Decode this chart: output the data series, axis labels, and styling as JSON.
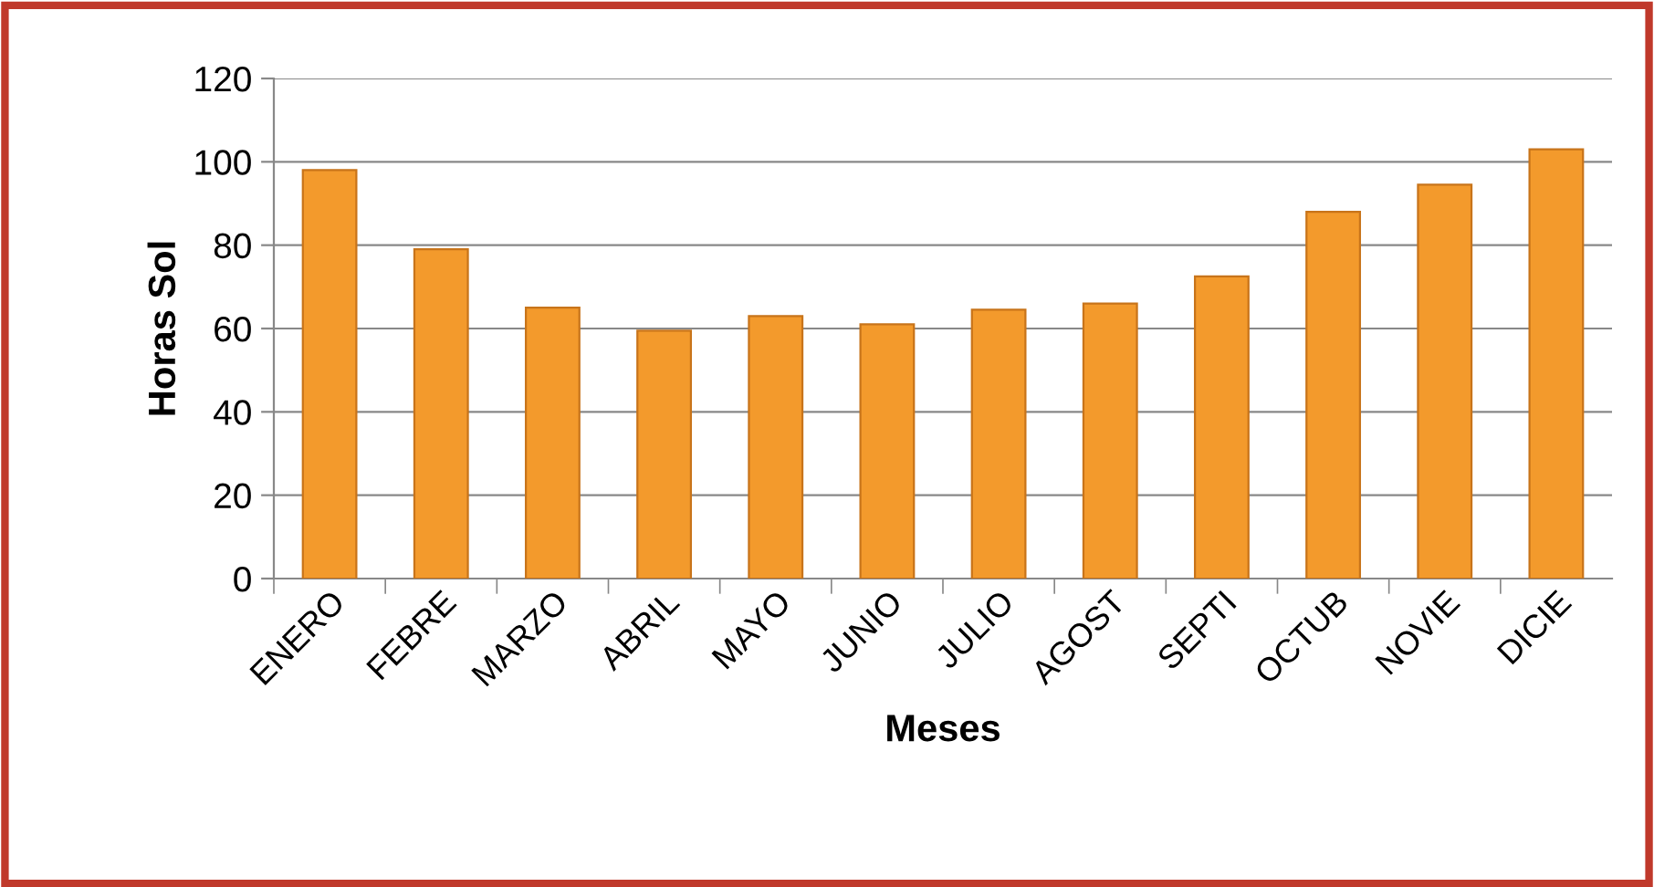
{
  "chart_data": {
    "type": "bar",
    "xlabel": "Meses",
    "ylabel": "Horas Sol",
    "categories": [
      "ENERO",
      "FEBRE",
      "MARZO",
      "ABRIL",
      "MAYO",
      "JUNIO",
      "JULIO",
      "AGOST",
      "SEPTI",
      "OCTUB",
      "NOVIE",
      "DICIE"
    ],
    "values": [
      98,
      79,
      65,
      59.5,
      63,
      61,
      64.5,
      66,
      72.5,
      88,
      94.5,
      103
    ],
    "color": "#f39a2c",
    "ylim": [
      0,
      120
    ],
    "yticks": [
      0,
      20,
      40,
      60,
      80,
      100,
      120
    ],
    "grid": "y",
    "legend": false
  }
}
